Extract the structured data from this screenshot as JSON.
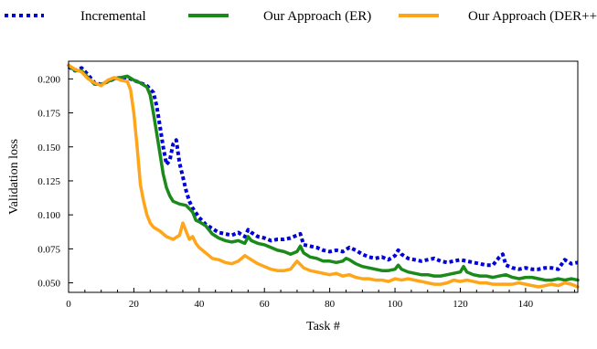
{
  "chart_data": {
    "type": "line",
    "xlabel": "Task #",
    "ylabel": "Validation loss",
    "xlim": [
      0,
      156
    ],
    "ylim": [
      0.043,
      0.213
    ],
    "xticks": [
      0,
      20,
      40,
      60,
      80,
      100,
      120,
      140
    ],
    "yticks": [
      0.05,
      0.075,
      0.1,
      0.125,
      0.15,
      0.175,
      0.2
    ],
    "ytick_labels": [
      "0.050",
      "0.075",
      "0.100",
      "0.125",
      "0.150",
      "0.175",
      "0.200"
    ],
    "grid": false,
    "legend_position": "top",
    "series": [
      {
        "name": "Incremental",
        "color": "#0000dd",
        "style": "dotted",
        "x": [
          0,
          2,
          4,
          6,
          8,
          10,
          12,
          14,
          16,
          18,
          20,
          22,
          24,
          26,
          27,
          28,
          29,
          30,
          31,
          32,
          33,
          34,
          35,
          36,
          37,
          38,
          40,
          42,
          44,
          46,
          48,
          50,
          52,
          54,
          55,
          56,
          58,
          60,
          62,
          64,
          66,
          68,
          70,
          71,
          72,
          74,
          76,
          78,
          80,
          82,
          84,
          86,
          88,
          90,
          92,
          94,
          96,
          98,
          100,
          101,
          102,
          104,
          106,
          108,
          110,
          112,
          114,
          116,
          118,
          120,
          122,
          124,
          126,
          128,
          130,
          132,
          133,
          134,
          136,
          138,
          140,
          142,
          144,
          146,
          148,
          150,
          152,
          154,
          156
        ],
        "y": [
          0.209,
          0.206,
          0.208,
          0.203,
          0.197,
          0.196,
          0.198,
          0.2,
          0.201,
          0.201,
          0.199,
          0.197,
          0.195,
          0.19,
          0.18,
          0.165,
          0.15,
          0.137,
          0.14,
          0.152,
          0.155,
          0.138,
          0.128,
          0.118,
          0.11,
          0.105,
          0.098,
          0.093,
          0.09,
          0.087,
          0.086,
          0.085,
          0.087,
          0.084,
          0.089,
          0.087,
          0.084,
          0.083,
          0.081,
          0.082,
          0.082,
          0.083,
          0.085,
          0.086,
          0.078,
          0.077,
          0.076,
          0.074,
          0.073,
          0.074,
          0.073,
          0.076,
          0.074,
          0.071,
          0.069,
          0.068,
          0.069,
          0.067,
          0.07,
          0.074,
          0.071,
          0.068,
          0.067,
          0.066,
          0.067,
          0.068,
          0.066,
          0.065,
          0.066,
          0.067,
          0.066,
          0.065,
          0.064,
          0.063,
          0.063,
          0.069,
          0.071,
          0.063,
          0.061,
          0.06,
          0.061,
          0.06,
          0.06,
          0.061,
          0.061,
          0.06,
          0.067,
          0.064,
          0.065
        ]
      },
      {
        "name": "Our Approach (ER)",
        "color": "#1a8a1a",
        "style": "solid",
        "x": [
          0,
          2,
          4,
          6,
          8,
          10,
          12,
          14,
          16,
          18,
          20,
          22,
          24,
          25,
          26,
          27,
          28,
          29,
          30,
          31,
          32,
          34,
          36,
          38,
          39,
          40,
          42,
          44,
          46,
          48,
          50,
          52,
          54,
          55,
          56,
          58,
          60,
          62,
          64,
          66,
          68,
          70,
          71,
          72,
          74,
          76,
          78,
          80,
          82,
          84,
          85,
          86,
          88,
          90,
          92,
          94,
          96,
          98,
          100,
          101,
          102,
          104,
          106,
          108,
          110,
          112,
          114,
          116,
          118,
          120,
          121,
          122,
          124,
          126,
          128,
          130,
          132,
          134,
          136,
          138,
          140,
          142,
          144,
          146,
          148,
          150,
          152,
          154,
          156
        ],
        "y": [
          0.21,
          0.206,
          0.206,
          0.201,
          0.196,
          0.196,
          0.198,
          0.2,
          0.201,
          0.202,
          0.199,
          0.197,
          0.194,
          0.188,
          0.175,
          0.16,
          0.145,
          0.13,
          0.12,
          0.114,
          0.11,
          0.108,
          0.107,
          0.102,
          0.096,
          0.095,
          0.092,
          0.086,
          0.083,
          0.081,
          0.08,
          0.081,
          0.079,
          0.084,
          0.081,
          0.079,
          0.078,
          0.076,
          0.074,
          0.073,
          0.071,
          0.073,
          0.077,
          0.072,
          0.069,
          0.068,
          0.066,
          0.066,
          0.065,
          0.066,
          0.068,
          0.067,
          0.064,
          0.062,
          0.061,
          0.06,
          0.059,
          0.059,
          0.06,
          0.063,
          0.06,
          0.058,
          0.057,
          0.056,
          0.056,
          0.055,
          0.055,
          0.056,
          0.057,
          0.058,
          0.062,
          0.058,
          0.056,
          0.055,
          0.055,
          0.054,
          0.055,
          0.056,
          0.054,
          0.053,
          0.054,
          0.054,
          0.053,
          0.052,
          0.052,
          0.053,
          0.052,
          0.053,
          0.052
        ]
      },
      {
        "name": "Our Approach (DER++)",
        "color": "#ffa51a",
        "style": "solid",
        "x": [
          0,
          2,
          4,
          6,
          8,
          10,
          12,
          14,
          16,
          18,
          19,
          20,
          21,
          22,
          23,
          24,
          25,
          26,
          28,
          30,
          32,
          34,
          35,
          36,
          37,
          38,
          39,
          40,
          42,
          44,
          46,
          48,
          50,
          52,
          54,
          56,
          58,
          60,
          62,
          64,
          66,
          68,
          70,
          72,
          74,
          76,
          78,
          80,
          82,
          84,
          86,
          88,
          90,
          92,
          94,
          96,
          98,
          100,
          102,
          104,
          106,
          108,
          110,
          112,
          114,
          116,
          118,
          120,
          122,
          124,
          126,
          128,
          130,
          132,
          134,
          136,
          138,
          140,
          142,
          144,
          146,
          148,
          150,
          152,
          154,
          156
        ],
        "y": [
          0.21,
          0.207,
          0.205,
          0.2,
          0.197,
          0.195,
          0.199,
          0.201,
          0.199,
          0.198,
          0.192,
          0.175,
          0.15,
          0.122,
          0.11,
          0.1,
          0.094,
          0.091,
          0.088,
          0.084,
          0.082,
          0.085,
          0.094,
          0.088,
          0.082,
          0.084,
          0.079,
          0.076,
          0.072,
          0.068,
          0.067,
          0.065,
          0.064,
          0.066,
          0.07,
          0.067,
          0.064,
          0.062,
          0.06,
          0.059,
          0.059,
          0.06,
          0.066,
          0.061,
          0.059,
          0.058,
          0.057,
          0.056,
          0.057,
          0.055,
          0.056,
          0.054,
          0.053,
          0.053,
          0.052,
          0.052,
          0.051,
          0.053,
          0.052,
          0.053,
          0.052,
          0.051,
          0.05,
          0.049,
          0.049,
          0.05,
          0.052,
          0.051,
          0.052,
          0.051,
          0.05,
          0.05,
          0.049,
          0.049,
          0.049,
          0.049,
          0.05,
          0.049,
          0.048,
          0.047,
          0.048,
          0.049,
          0.048,
          0.05,
          0.049,
          0.047
        ]
      }
    ]
  }
}
